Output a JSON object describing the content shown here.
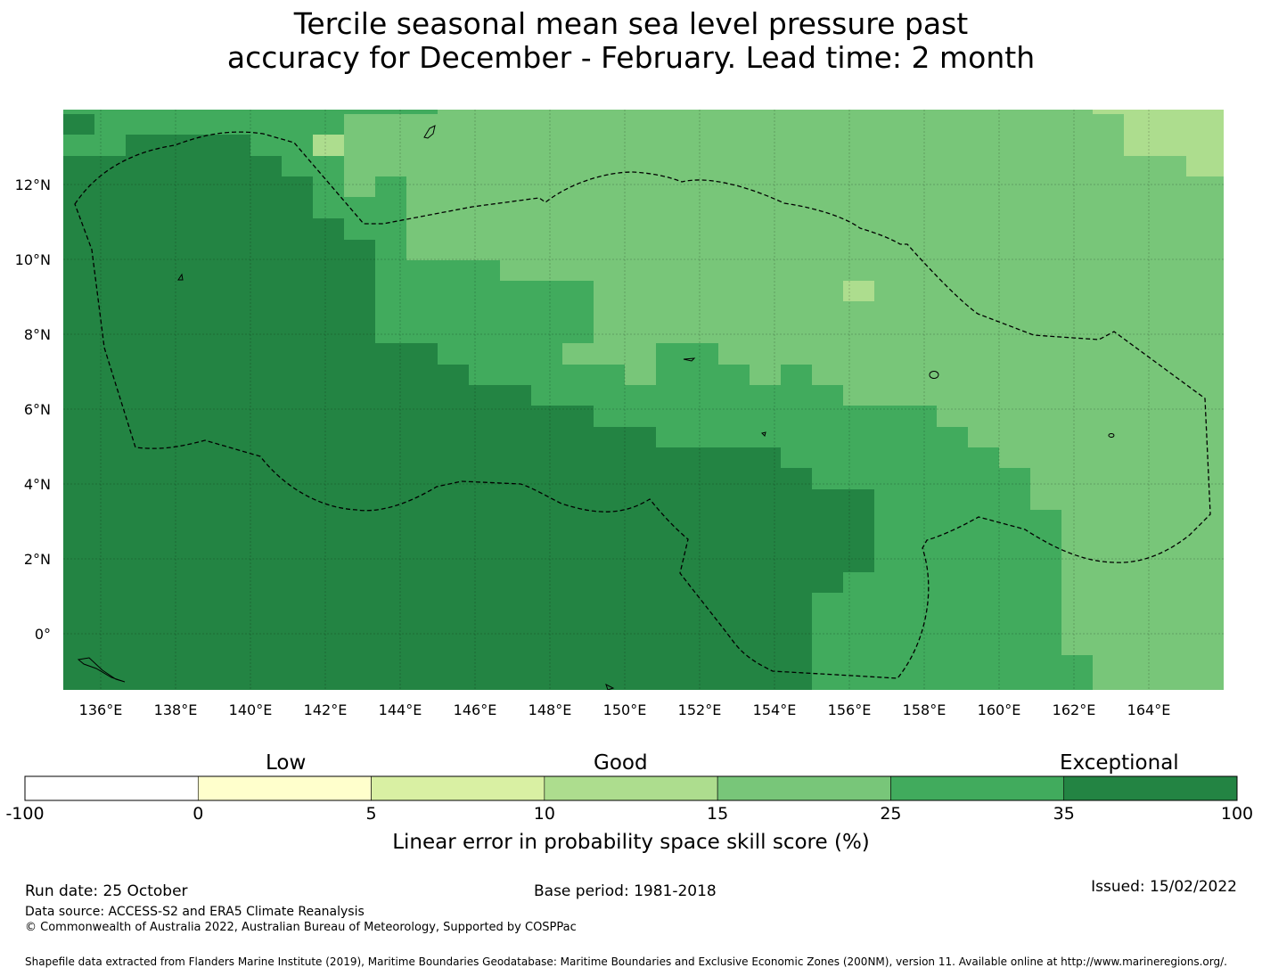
{
  "title": {
    "line1": "Tercile seasonal mean sea level pressure past",
    "line2": "accuracy for December - February. Lead time: 2 month"
  },
  "map": {
    "lon_labels": [
      "136°E",
      "138°E",
      "140°E",
      "142°E",
      "144°E",
      "146°E",
      "148°E",
      "150°E",
      "152°E",
      "154°E",
      "156°E",
      "158°E",
      "160°E",
      "162°E",
      "164°E"
    ],
    "lon_values": [
      136,
      138,
      140,
      142,
      144,
      146,
      148,
      150,
      152,
      154,
      156,
      158,
      160,
      162,
      164
    ],
    "lat_labels": [
      "12°N",
      "10°N",
      "8°N",
      "6°N",
      "4°N",
      "2°N",
      "0°"
    ],
    "lat_values": [
      12,
      10,
      8,
      6,
      4,
      2,
      0
    ],
    "lon_range": [
      135,
      166
    ],
    "lat_range": [
      -1.5,
      14
    ]
  },
  "colorbar": {
    "headings": {
      "low": "Low",
      "good": "Good",
      "exceptional": "Exceptional"
    },
    "ticks": [
      "-100",
      "0",
      "5",
      "10",
      "15",
      "25",
      "35",
      "100"
    ],
    "colors": [
      "#ffffff",
      "#ffffcc",
      "#d9f0a3",
      "#addd8e",
      "#78c679",
      "#41ab5d",
      "#238443"
    ],
    "label": "Linear error in probability space skill score (%)"
  },
  "footer": {
    "run_date": "Run date: 25 October",
    "base_period": "Base period: 1981-2018",
    "issued": "Issued: 15/02/2022",
    "data_source": "Data source: ACCESS-S2 and ERA5 Climate Reanalysis",
    "copyright": "© Commonwealth of Australia 2022, Australian Bureau of Meteorology, Supported by COSPPac",
    "shapefile": "Shapefile data extracted from Flanders Marine Institute (2019), Maritime Boundaries Geodatabase: Maritime Boundaries and Exclusive Economic Zones (200NM), version 11. Available online at http://www.marineregions.org/."
  }
}
